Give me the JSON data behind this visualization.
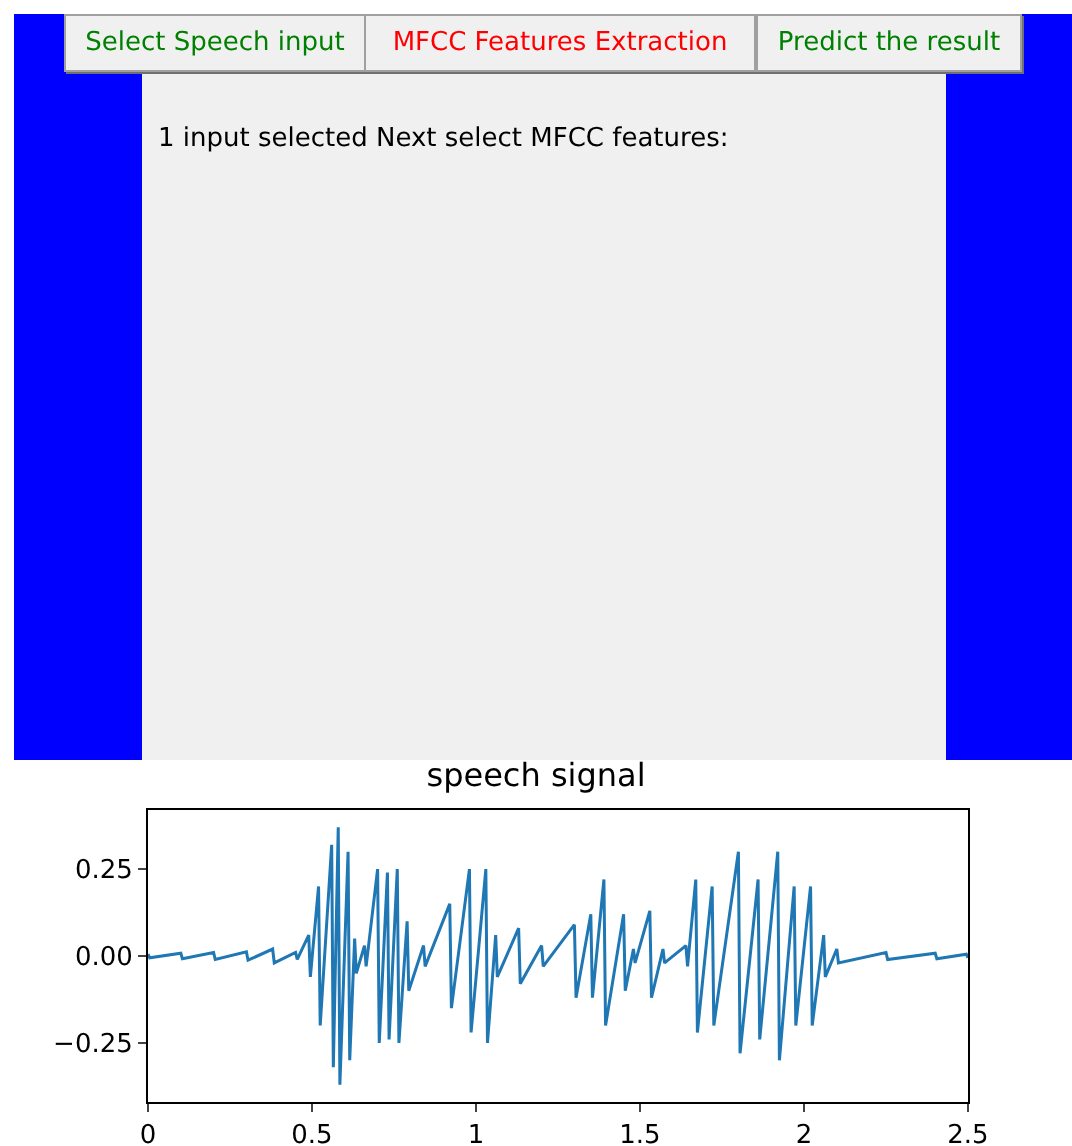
{
  "chart_data": [
    {
      "type": "other",
      "annotations": [
        "Select Speech input",
        "MFCC Features Extraction",
        "Predict the result",
        "1 input selected Next select MFCC features:"
      ],
      "colors": [
        "#008000",
        "#ff0000",
        "#008000",
        "#000000"
      ]
    },
    {
      "type": "line",
      "title": "speech signal",
      "xlim": [
        0,
        2.5
      ],
      "ylim": [
        -0.42,
        0.42
      ],
      "xticks": [
        0,
        0.5,
        1,
        1.5,
        2,
        2.5
      ],
      "yticks": [
        {
          "value": -0.25,
          "label": "−0.25"
        },
        {
          "value": 0,
          "label": "0.00"
        },
        {
          "value": 0.25,
          "label": "0.25"
        }
      ],
      "grid": false,
      "series": [
        {
          "color": "#1f77b4",
          "x": [
            0,
            0.005,
            0.1,
            0.105,
            0.2,
            0.205,
            0.3,
            0.305,
            0.38,
            0.385,
            0.45,
            0.455,
            0.49,
            0.495,
            0.52,
            0.525,
            0.56,
            0.565,
            0.58,
            0.585,
            0.61,
            0.615,
            0.63,
            0.635,
            0.66,
            0.665,
            0.7,
            0.705,
            0.73,
            0.735,
            0.76,
            0.765,
            0.79,
            0.795,
            0.84,
            0.845,
            0.92,
            0.925,
            0.98,
            0.985,
            1.03,
            1.035,
            1.06,
            1.065,
            1.13,
            1.135,
            1.2,
            1.205,
            1.3,
            1.305,
            1.35,
            1.355,
            1.39,
            1.395,
            1.45,
            1.455,
            1.48,
            1.485,
            1.53,
            1.535,
            1.57,
            1.575,
            1.64,
            1.645,
            1.67,
            1.675,
            1.72,
            1.725,
            1.8,
            1.805,
            1.86,
            1.865,
            1.92,
            1.925,
            1.97,
            1.975,
            2.02,
            2.025,
            2.06,
            2.065,
            2.1,
            2.105,
            2.25,
            2.255,
            2.4,
            2.405,
            2.495,
            2.5
          ],
          "values": [
            0.005,
            -0.005,
            0.008,
            -0.008,
            0.01,
            -0.01,
            0.012,
            -0.012,
            0.02,
            -0.02,
            0.01,
            -0.01,
            0.06,
            -0.06,
            0.2,
            -0.2,
            0.32,
            -0.32,
            0.37,
            -0.37,
            0.3,
            -0.3,
            0.05,
            -0.05,
            0.03,
            -0.03,
            0.25,
            -0.25,
            0.24,
            -0.24,
            0.25,
            -0.25,
            0.1,
            -0.1,
            0.03,
            -0.03,
            0.15,
            -0.15,
            0.25,
            -0.22,
            0.25,
            -0.25,
            0.06,
            -0.06,
            0.08,
            -0.08,
            0.03,
            -0.03,
            0.09,
            -0.12,
            0.12,
            -0.12,
            0.22,
            -0.2,
            0.12,
            -0.1,
            0.02,
            -0.02,
            0.13,
            -0.12,
            0.02,
            -0.02,
            0.03,
            -0.03,
            0.22,
            -0.22,
            0.2,
            -0.2,
            0.3,
            -0.28,
            0.22,
            -0.24,
            0.3,
            -0.3,
            0.2,
            -0.2,
            0.2,
            -0.2,
            0.06,
            -0.06,
            0.02,
            -0.02,
            0.01,
            -0.01,
            0.008,
            -0.008,
            0.005,
            -0.005
          ]
        }
      ]
    }
  ]
}
